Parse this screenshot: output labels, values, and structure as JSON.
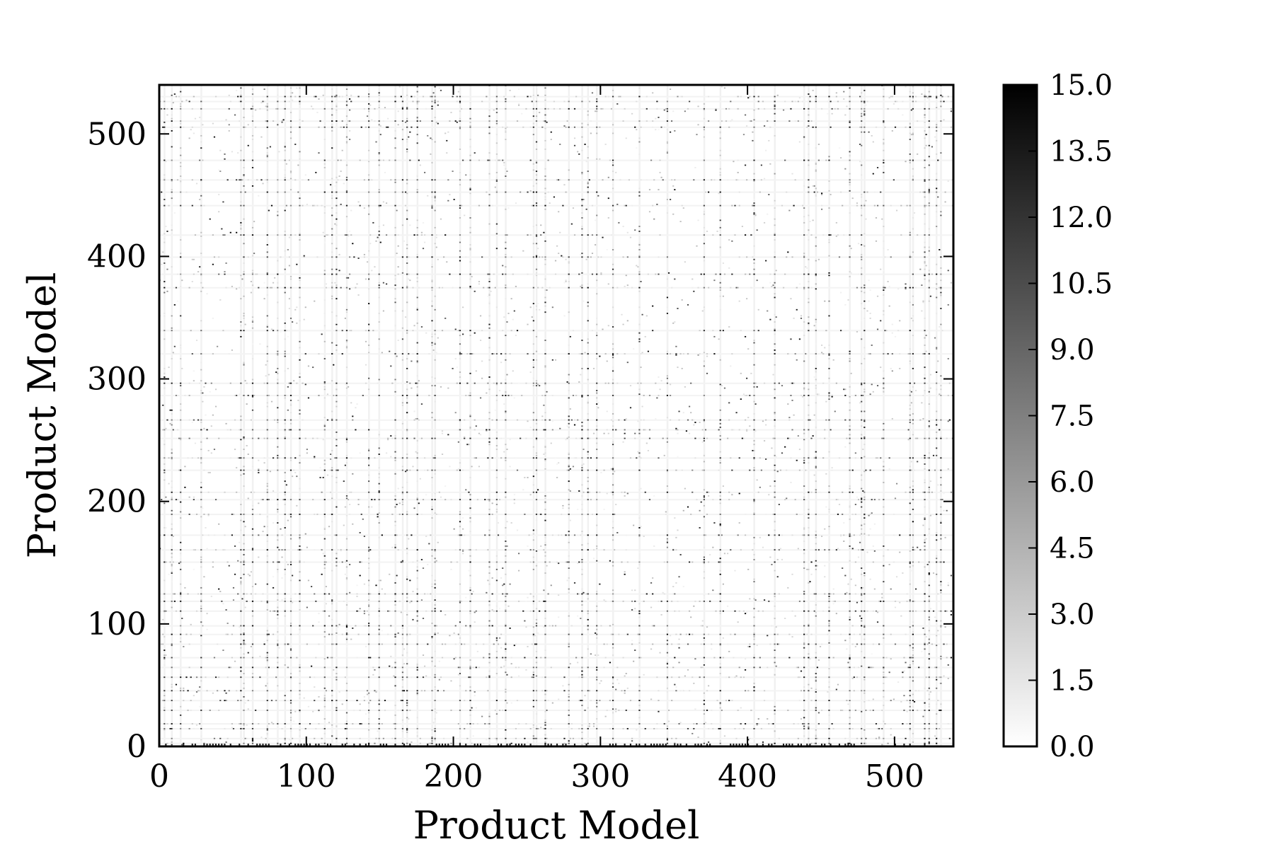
{
  "chart_data": {
    "type": "heatmap",
    "title": "",
    "xlabel": "Product Model",
    "ylabel": "Product Model",
    "xlim": [
      0,
      540
    ],
    "ylim": [
      0,
      540
    ],
    "n_models": 540,
    "x_ticks": [
      0,
      100,
      200,
      300,
      400,
      500
    ],
    "x_tick_labels": [
      "0",
      "100",
      "200",
      "300",
      "400",
      "500"
    ],
    "y_ticks": [
      0,
      100,
      200,
      300,
      400,
      500
    ],
    "y_tick_labels": [
      "0",
      "100",
      "200",
      "300",
      "400",
      "500"
    ],
    "colorbar": {
      "min": 0.0,
      "max": 15.0,
      "ticks": [
        0.0,
        1.5,
        3.0,
        4.5,
        6.0,
        7.5,
        9.0,
        10.5,
        12.0,
        13.5,
        15.0
      ],
      "tick_labels": [
        "0.0",
        "1.5",
        "3.0",
        "4.5",
        "6.0",
        "7.5",
        "9.0",
        "10.5",
        "12.0",
        "13.5",
        "15.0"
      ],
      "colormap": "greys",
      "color_low": "#ffffff",
      "color_high": "#000000"
    },
    "dense_columns": [
      3,
      8,
      14,
      28,
      55,
      57,
      63,
      73,
      80,
      85,
      89,
      95,
      112,
      117,
      120,
      127,
      142,
      149,
      160,
      165,
      168,
      175,
      185,
      187,
      204,
      211,
      224,
      229,
      235,
      254,
      256,
      262,
      278,
      287,
      291,
      297,
      308,
      326,
      345,
      370,
      381,
      404,
      418,
      438,
      441,
      446,
      455,
      469,
      477,
      479,
      492,
      510,
      512,
      520,
      523,
      528,
      531
    ],
    "dense_rows": [
      2,
      6,
      14,
      18,
      29,
      37,
      45,
      56,
      64,
      72,
      83,
      91,
      98,
      110,
      118,
      124,
      150,
      160,
      172,
      189,
      201,
      207,
      225,
      235,
      251,
      258,
      266,
      286,
      296,
      320,
      339,
      374,
      385,
      399,
      417,
      441,
      452,
      462,
      478,
      505,
      510,
      520,
      526,
      530
    ],
    "grid": false
  }
}
